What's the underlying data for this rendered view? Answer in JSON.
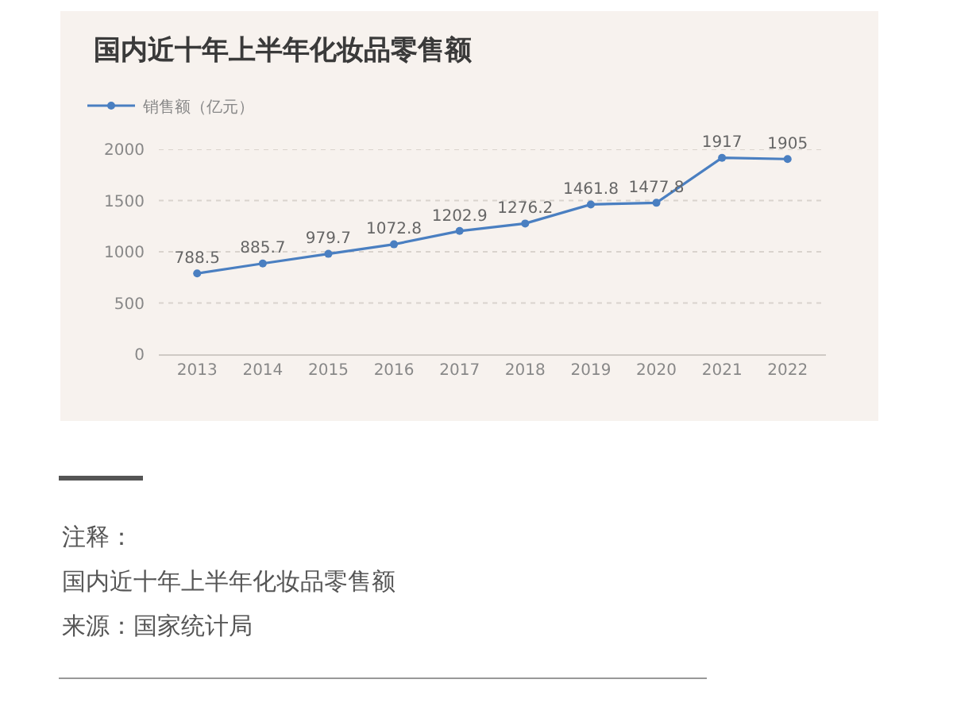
{
  "chart_data": {
    "type": "line",
    "title": "国内近十年上半年化妆品零售额",
    "categories": [
      "2013",
      "2014",
      "2015",
      "2016",
      "2017",
      "2018",
      "2019",
      "2020",
      "2021",
      "2022"
    ],
    "series": [
      {
        "name": "销售额（亿元）",
        "color": "#4a7fc1",
        "values": [
          788.5,
          885.7,
          979.7,
          1072.8,
          1202.9,
          1276.2,
          1461.8,
          1477.8,
          1917,
          1905
        ]
      }
    ],
    "ylim": [
      0,
      2000
    ],
    "yticks": [
      0,
      500,
      1000,
      1500,
      2000
    ],
    "grid": "y",
    "legend": "top left",
    "marker": "circle",
    "line_style": "solid",
    "data_labels": true,
    "annotations": [
      "注释：",
      "国内近十年上半年化妆品零售额",
      "来源：国家统计局"
    ]
  }
}
